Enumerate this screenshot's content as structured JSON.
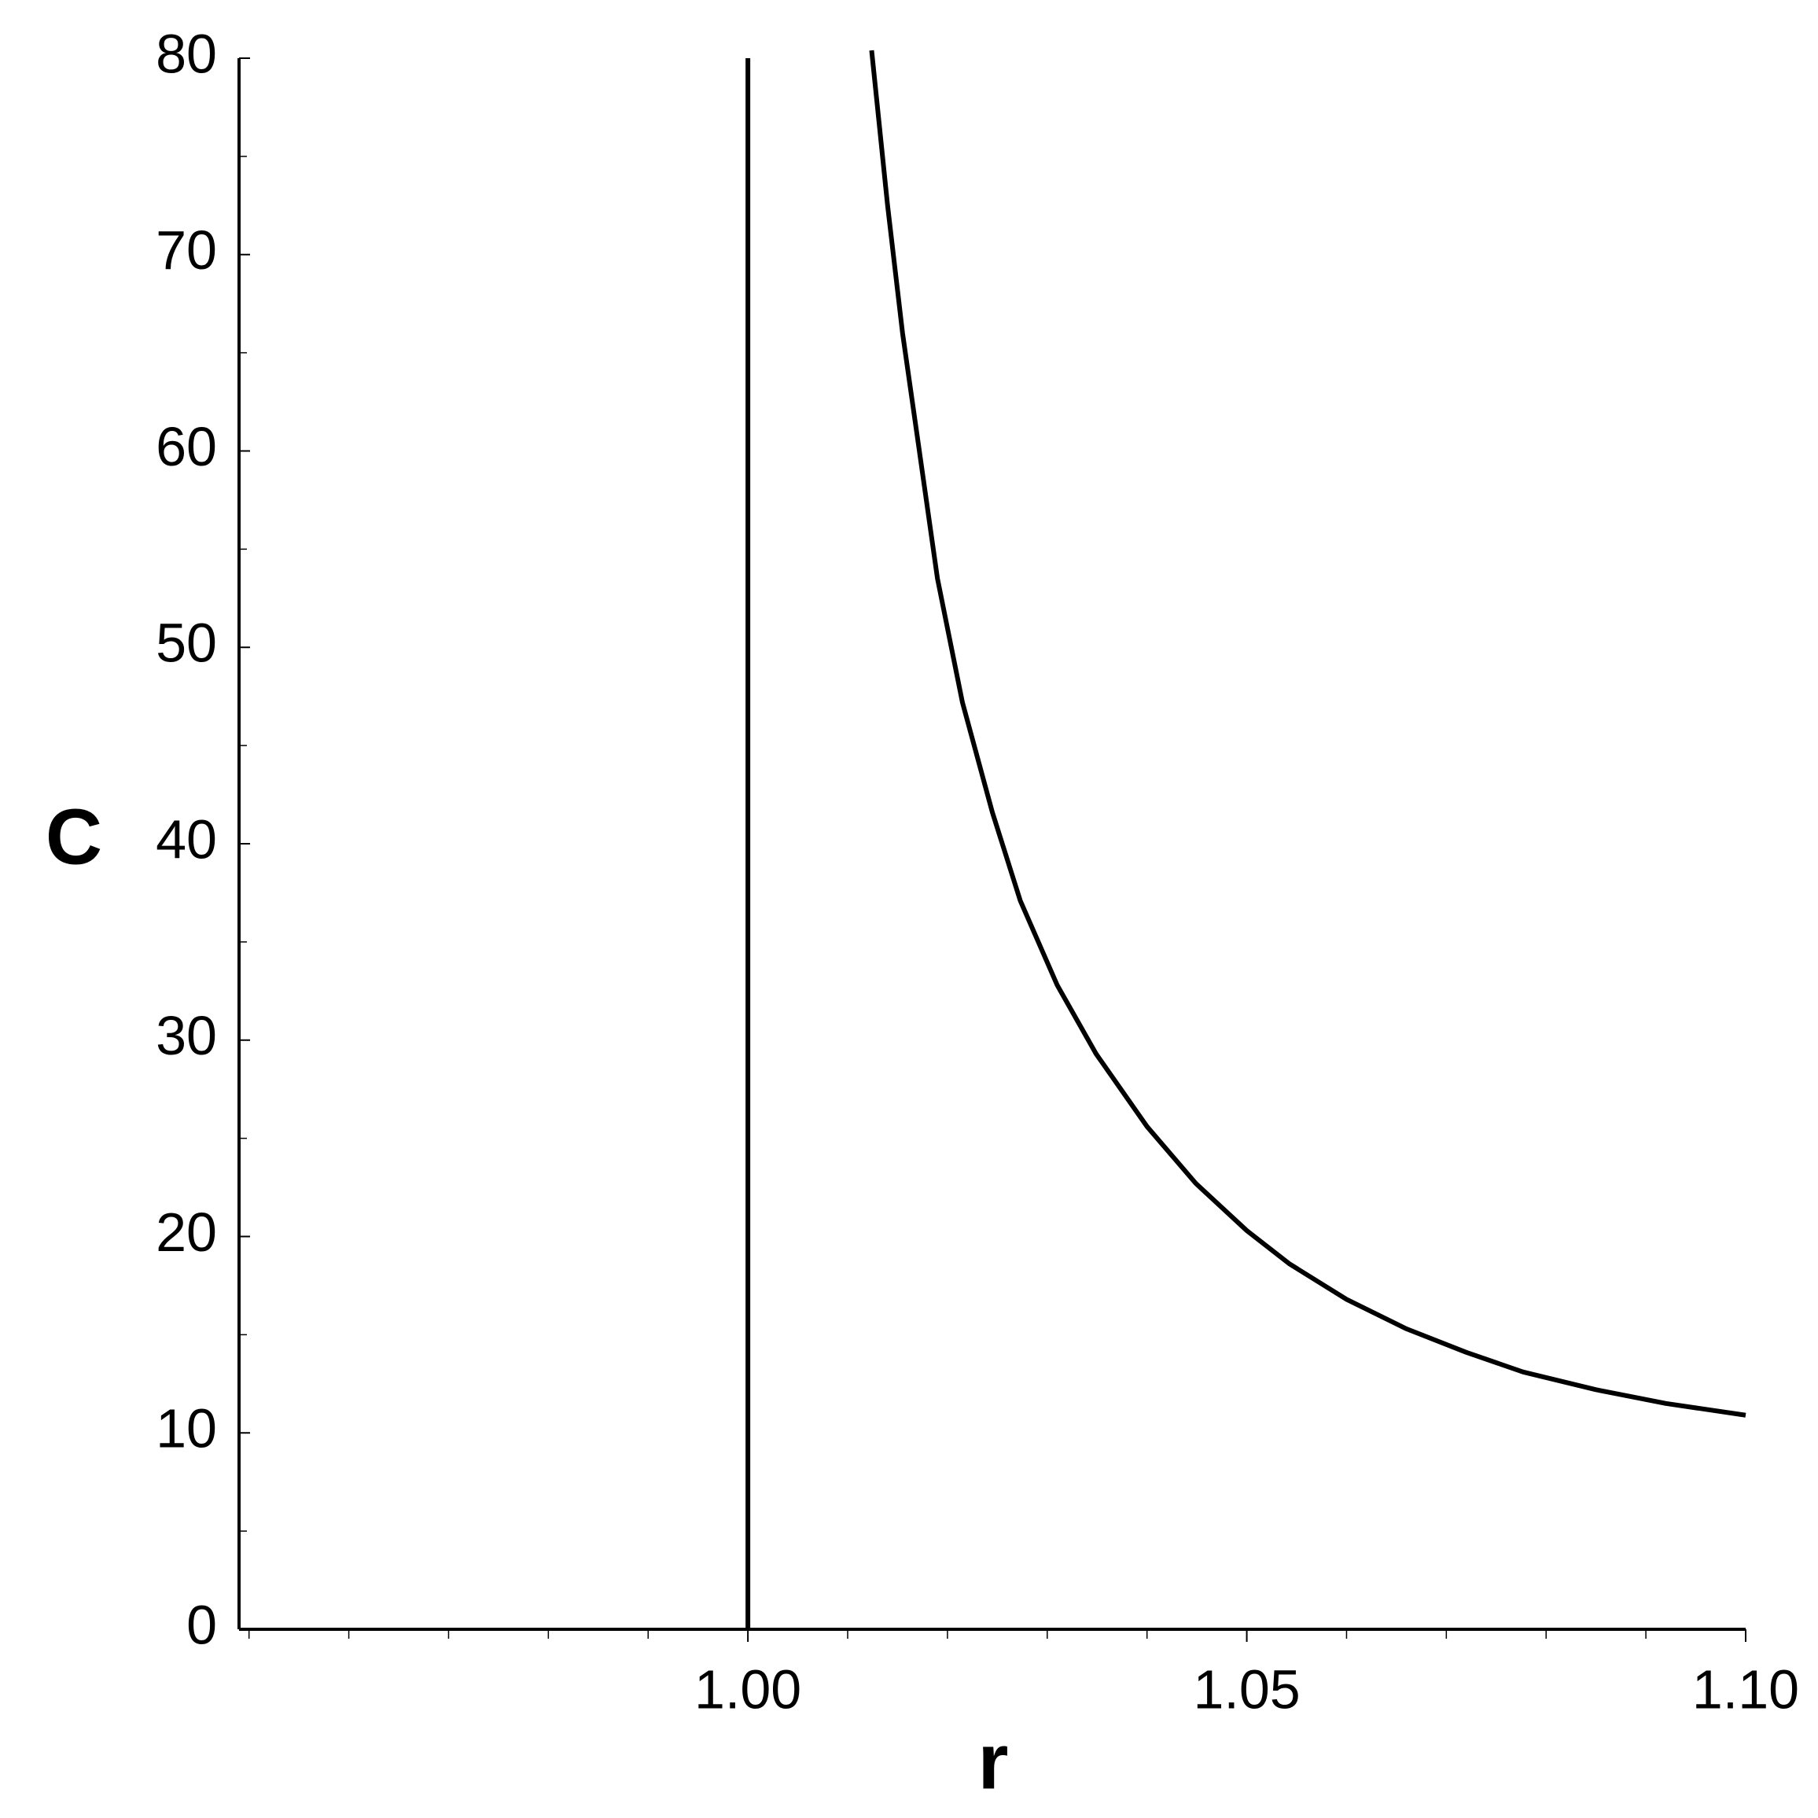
{
  "chart_data": {
    "type": "line",
    "x_label": "r",
    "y_label": "C",
    "xlim": [
      0.949,
      1.1
    ],
    "ylim": [
      0,
      80
    ],
    "xticks": [
      {
        "value": 1.0,
        "label": "1.00"
      },
      {
        "value": 1.05,
        "label": "1.05"
      },
      {
        "value": 1.1,
        "label": "1.10"
      }
    ],
    "xminorticks": [
      0.95,
      0.96,
      0.97,
      0.98,
      0.99,
      1.01,
      1.02,
      1.03,
      1.04,
      1.06,
      1.07,
      1.08,
      1.09
    ],
    "yticks": [
      0,
      10,
      20,
      30,
      40,
      50,
      60,
      70,
      80
    ],
    "yminorticks": [
      5,
      15,
      25,
      35,
      45,
      55,
      65,
      75
    ],
    "grid": false,
    "series": [
      {
        "color": "#000000",
        "x": [
          1.0,
          1.0
        ],
        "values": [
          0,
          80
        ]
      },
      {
        "color": "#000000",
        "x": [
          1.0124,
          1.014,
          1.0155,
          1.0171,
          1.019,
          1.0215,
          1.0245,
          1.0273,
          1.031,
          1.0349,
          1.04,
          1.0449,
          1.05,
          1.0543,
          1.06,
          1.066,
          1.072,
          1.0777,
          1.085,
          1.092,
          1.1
        ],
        "values": [
          80.4,
          72.5,
          66,
          60.3,
          53.5,
          47.2,
          41.6,
          37.1,
          32.8,
          29.3,
          25.6,
          22.7,
          20.3,
          18.6,
          16.8,
          15.3,
          14.1,
          13.1,
          12.2,
          11.5,
          10.9
        ]
      }
    ]
  }
}
